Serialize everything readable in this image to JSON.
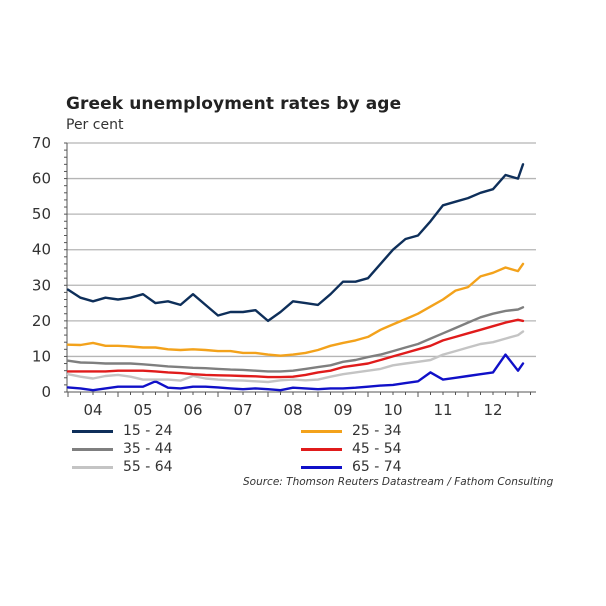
{
  "header": {
    "title": "Greek unemployment rates by age",
    "subtitle": "Per cent"
  },
  "source": "Source: Thomson Reuters Datastream / Fathom Consulting",
  "legend": [
    {
      "label": "15 - 24",
      "color": "#0e2f5a"
    },
    {
      "label": "25 - 34",
      "color": "#f3a21b"
    },
    {
      "label": "35 - 44",
      "color": "#7f7f7f"
    },
    {
      "label": "45 - 54",
      "color": "#e01b1b"
    },
    {
      "label": "55 - 64",
      "color": "#c4c4c4"
    },
    {
      "label": "65 - 74",
      "color": "#1010c8"
    }
  ],
  "chart_data": {
    "type": "line",
    "title": "Greek unemployment rates by age",
    "subtitle": "Per cent",
    "xlabel": "",
    "ylabel": "Per cent",
    "ylim": [
      0,
      70
    ],
    "yticks": [
      0,
      10,
      20,
      30,
      40,
      50,
      60,
      70
    ],
    "xticks": [
      "04",
      "05",
      "06",
      "07",
      "08",
      "09",
      "10",
      "11",
      "12"
    ],
    "xlim": [
      2004.0,
      2013.4
    ],
    "grid": true,
    "legend_position": "bottom",
    "source": "Source: Thomson Reuters Datastream / Fathom Consulting",
    "x": [
      2004.0,
      2004.25,
      2004.5,
      2004.75,
      2005.0,
      2005.25,
      2005.5,
      2005.75,
      2006.0,
      2006.25,
      2006.5,
      2006.75,
      2007.0,
      2007.25,
      2007.5,
      2007.75,
      2008.0,
      2008.25,
      2008.5,
      2008.75,
      2009.0,
      2009.25,
      2009.5,
      2009.75,
      2010.0,
      2010.25,
      2010.5,
      2010.75,
      2011.0,
      2011.25,
      2011.5,
      2011.75,
      2012.0,
      2012.25,
      2012.5,
      2012.75,
      2013.0,
      2013.1
    ],
    "series": [
      {
        "name": "15 - 24",
        "color": "#0e2f5a",
        "values": [
          28.8,
          26.5,
          25.5,
          26.5,
          26.0,
          26.5,
          27.5,
          25.0,
          25.5,
          24.5,
          27.5,
          24.5,
          21.5,
          22.5,
          22.5,
          23.0,
          20.0,
          22.5,
          25.5,
          25.0,
          24.5,
          27.5,
          31.0,
          31.0,
          32.0,
          36.0,
          40.0,
          43.0,
          44.0,
          48.0,
          52.5,
          53.5,
          54.5,
          56.0,
          57.0,
          61.0,
          60.0,
          64.0
        ]
      },
      {
        "name": "25 - 34",
        "color": "#f3a21b",
        "values": [
          13.3,
          13.2,
          13.8,
          13.0,
          13.0,
          12.8,
          12.5,
          12.5,
          12.0,
          11.8,
          12.0,
          11.8,
          11.5,
          11.5,
          11.0,
          11.0,
          10.5,
          10.2,
          10.5,
          11.0,
          11.8,
          13.0,
          13.8,
          14.5,
          15.5,
          17.5,
          19.0,
          20.5,
          22.0,
          24.0,
          26.0,
          28.5,
          29.5,
          32.5,
          33.5,
          35.0,
          34.0,
          36.0
        ]
      },
      {
        "name": "35 - 44",
        "color": "#7f7f7f",
        "values": [
          8.8,
          8.3,
          8.2,
          8.0,
          8.0,
          8.0,
          7.8,
          7.5,
          7.2,
          7.0,
          6.8,
          6.7,
          6.5,
          6.3,
          6.2,
          6.0,
          5.8,
          5.8,
          6.0,
          6.5,
          7.0,
          7.5,
          8.5,
          9.0,
          9.8,
          10.5,
          11.5,
          12.5,
          13.5,
          15.0,
          16.5,
          18.0,
          19.5,
          21.0,
          22.0,
          22.8,
          23.2,
          23.8
        ]
      },
      {
        "name": "45 - 54",
        "color": "#e01b1b",
        "values": [
          5.8,
          5.8,
          5.8,
          5.8,
          6.0,
          6.0,
          6.0,
          5.8,
          5.5,
          5.3,
          5.0,
          4.8,
          4.7,
          4.6,
          4.5,
          4.4,
          4.2,
          4.2,
          4.3,
          4.8,
          5.5,
          6.0,
          7.0,
          7.5,
          8.0,
          9.0,
          10.0,
          11.0,
          12.0,
          13.0,
          14.5,
          15.5,
          16.5,
          17.5,
          18.5,
          19.5,
          20.3,
          20.0
        ]
      },
      {
        "name": "55 - 64",
        "color": "#c4c4c4",
        "values": [
          5.0,
          4.3,
          3.8,
          4.5,
          4.8,
          4.3,
          3.5,
          3.5,
          3.5,
          3.2,
          4.5,
          3.8,
          3.5,
          3.3,
          3.2,
          3.0,
          2.8,
          3.3,
          3.5,
          3.3,
          3.5,
          4.3,
          5.0,
          5.5,
          6.0,
          6.5,
          7.5,
          8.0,
          8.5,
          9.0,
          10.5,
          11.5,
          12.5,
          13.5,
          14.0,
          15.0,
          16.0,
          17.0
        ]
      },
      {
        "name": "65 - 74",
        "color": "#1010c8",
        "values": [
          1.3,
          1.0,
          0.5,
          1.0,
          1.5,
          1.5,
          1.5,
          3.0,
          1.2,
          1.0,
          1.5,
          1.5,
          1.3,
          1.0,
          0.8,
          1.0,
          0.8,
          0.5,
          1.2,
          1.0,
          0.8,
          1.0,
          1.0,
          1.2,
          1.5,
          1.8,
          2.0,
          2.5,
          3.0,
          5.5,
          3.5,
          4.0,
          4.5,
          5.0,
          5.5,
          10.5,
          6.0,
          8.0
        ]
      }
    ]
  }
}
